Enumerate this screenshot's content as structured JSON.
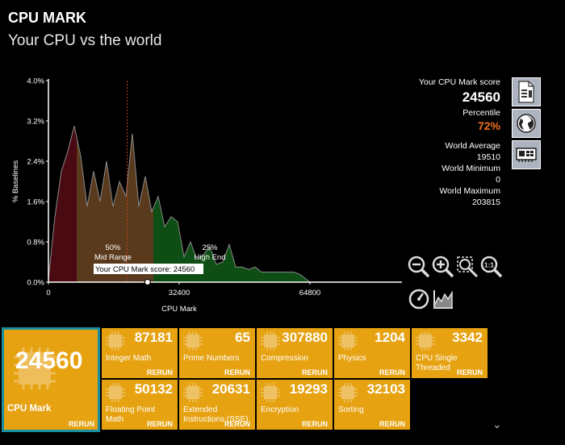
{
  "header": {
    "title": "CPU MARK",
    "subtitle": "Your CPU vs the world"
  },
  "chart_data": {
    "type": "area",
    "ylabel": "% Baselines",
    "xlabel": "CPU Mark",
    "y_ticks": [
      "0.0%",
      "0.8%",
      "1.6%",
      "2.4%",
      "3.2%",
      "4.0%"
    ],
    "x_ticks": [
      "0",
      "32400",
      "64800"
    ],
    "ylim": [
      0,
      4.0
    ],
    "xlim": [
      0,
      88000
    ],
    "x": [
      0,
      1600,
      3200,
      4800,
      6400,
      8000,
      9600,
      11200,
      12800,
      14400,
      16000,
      17600,
      19200,
      20800,
      22400,
      24000,
      25600,
      27200,
      28800,
      30400,
      32000,
      33600,
      35200,
      36800,
      38400,
      40000,
      41600,
      43200,
      44800,
      46400,
      48000,
      49600,
      51200,
      52800,
      54400,
      56000,
      57600,
      59200,
      60800,
      62400,
      64000,
      64800
    ],
    "y": [
      0.05,
      1.3,
      2.2,
      2.6,
      3.1,
      2.5,
      1.5,
      2.2,
      1.6,
      2.4,
      1.5,
      2.0,
      1.7,
      2.95,
      1.5,
      2.1,
      1.4,
      1.7,
      1.1,
      1.3,
      1.2,
      0.5,
      0.8,
      0.45,
      0.55,
      0.7,
      0.35,
      0.4,
      0.75,
      0.3,
      0.3,
      0.25,
      0.3,
      0.2,
      0.2,
      0.2,
      0.2,
      0.2,
      0.2,
      0.15,
      0.05,
      0.0
    ],
    "regions": [
      {
        "label": "",
        "from": 0,
        "to": 7000,
        "color": "#4a0a12"
      },
      {
        "label": "50%\nMid Range",
        "from": 7000,
        "to": 26000,
        "color": "#5a3a1c"
      },
      {
        "label": "25%\nHigh End",
        "from": 26000,
        "to": 64800,
        "color": "#0e4d14"
      }
    ],
    "region_labels": [
      {
        "pct": "50%",
        "name": "Mid Range"
      },
      {
        "pct": "25%",
        "name": "High End"
      }
    ],
    "marker": {
      "label": "Your CPU Mark score: 24560",
      "value": 24560
    },
    "average_line": 19510
  },
  "stats": {
    "score_label": "Your CPU Mark score",
    "score": "24560",
    "percentile_label": "Percentile",
    "percentile": "72%",
    "avg_label": "World Average",
    "avg": "19510",
    "min_label": "World Minimum",
    "min": "0",
    "max_label": "World Maximum",
    "max": "203815"
  },
  "side_buttons": [
    {
      "icon": "document-icon"
    },
    {
      "icon": "globe-icon"
    },
    {
      "icon": "hardware-card-icon"
    }
  ],
  "tools": [
    {
      "icon": "zoom-out-icon"
    },
    {
      "icon": "zoom-in-icon"
    },
    {
      "icon": "zoom-fit-icon"
    },
    {
      "icon": "zoom-reset-icon",
      "text": "1:1"
    },
    {
      "icon": "speedometer-icon"
    },
    {
      "icon": "chart-icon"
    }
  ],
  "main_tile": {
    "value": "24560",
    "label": "CPU Mark",
    "rerun": "RERUN"
  },
  "tiles": [
    {
      "value": "87181",
      "label": "Integer Math",
      "rerun": "RERUN"
    },
    {
      "value": "65",
      "label": "Prime Numbers",
      "rerun": "RERUN"
    },
    {
      "value": "307880",
      "label": "Compression",
      "rerun": "RERUN"
    },
    {
      "value": "1204",
      "label": "Physics",
      "rerun": "RERUN"
    },
    {
      "value": "3342",
      "label": "CPU Single\nThreaded",
      "rerun": "RERUN"
    },
    {
      "value": "50132",
      "label": "Floating Point\nMath",
      "rerun": "RERUN"
    },
    {
      "value": "20631",
      "label": "Extended\nInstructions (SSE)",
      "rerun": "RERUN"
    },
    {
      "value": "19293",
      "label": "Encryption",
      "rerun": "RERUN"
    },
    {
      "value": "32103",
      "label": "Sorting",
      "rerun": "RERUN"
    }
  ],
  "colors": {
    "accent": "#e6a211",
    "percentile": "#f07020",
    "selected_border": "#1a8fa0"
  }
}
